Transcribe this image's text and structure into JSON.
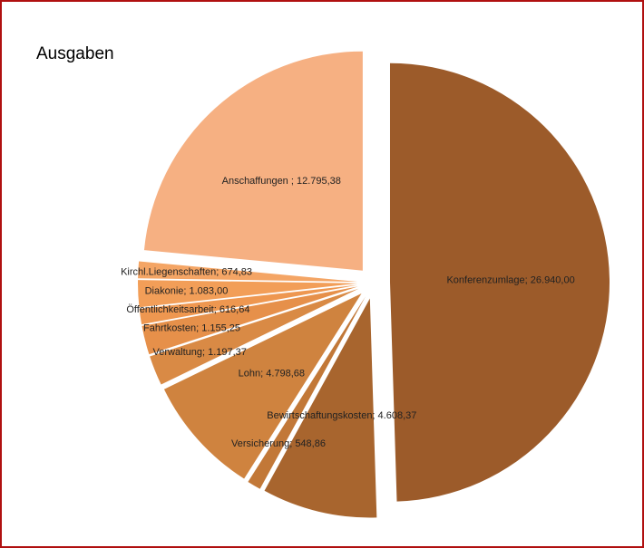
{
  "chart_data": {
    "type": "pie",
    "title": "Ausgaben",
    "values": [
      26940.0,
      4608.37,
      548.86,
      4798.68,
      1197.37,
      1155.25,
      616.64,
      1083.0,
      674.83,
      12795.38
    ],
    "value_labels": [
      "Konferenzumlage; 26.940,00",
      "Bewirtschaftungskosten; 4.608,37",
      "Versicherung; 548,86",
      "Lohn; 4.798,68",
      "Verwaltung; 1.197,37",
      "Fahrtkosten; 1.155,25",
      "Öffentlichkeitsarbeit; 616,64",
      "Diakonie; 1.083,00",
      "Kirchl.Liegenschaften; 674,83",
      "Anschaffungen ; 12.795,38"
    ],
    "colors": [
      "#9c5b2a",
      "#a8652e",
      "#c27838",
      "#cf833f",
      "#d98a45",
      "#e6904a",
      "#ee9750",
      "#f29e58",
      "#f4a565",
      "#f6b082"
    ]
  }
}
